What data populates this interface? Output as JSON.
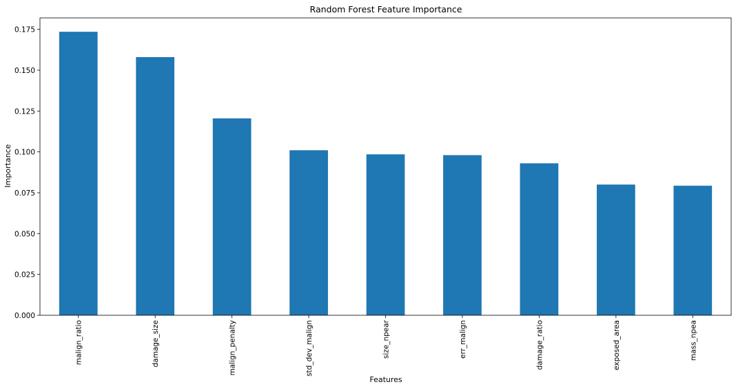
{
  "chart_data": {
    "type": "bar",
    "title": "Random Forest Feature Importance",
    "xlabel": "Features",
    "ylabel": "Importance",
    "categories": [
      "malign_ratio",
      "damage_size",
      "malign_penalty",
      "std_dev_malign",
      "size_npear",
      "err_malign",
      "damage_ratio",
      "exposed_area",
      "mass_npea"
    ],
    "values": [
      0.1735,
      0.158,
      0.1205,
      0.101,
      0.0985,
      0.098,
      0.093,
      0.08,
      0.0793
    ],
    "ylim": [
      0,
      0.182
    ],
    "yticks": [
      0.0,
      0.025,
      0.05,
      0.075,
      0.1,
      0.125,
      0.15,
      0.175
    ],
    "ytick_labels": [
      "0.000",
      "0.025",
      "0.050",
      "0.075",
      "0.100",
      "0.125",
      "0.150",
      "0.175"
    ],
    "grid": false,
    "legend": "none",
    "bar_color": "#1f77b4"
  }
}
